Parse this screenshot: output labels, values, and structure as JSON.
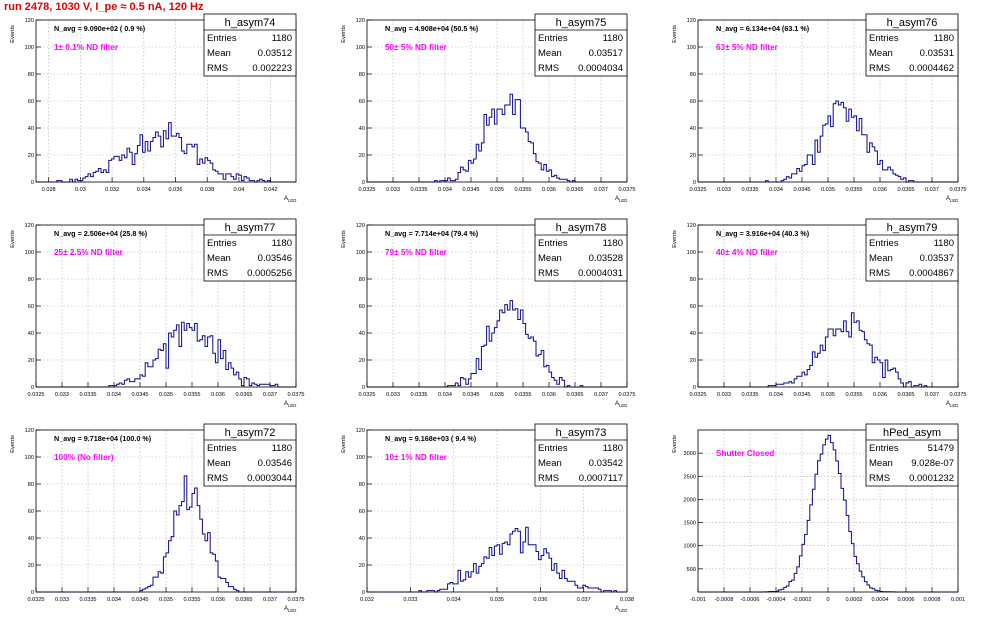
{
  "header": {
    "title": "run 2478,  1030 V, I_pe ≈ 0.5 nA, 120 Hz"
  },
  "colors": {
    "hist_line": "#0b0b8a",
    "annotation": "#ff00ff",
    "title": "#e00000",
    "grid": "#b0b0b0"
  },
  "stats_labels": {
    "entries": "Entries",
    "mean": "Mean",
    "rms": "RMS"
  },
  "chart_data": [
    {
      "name": "h_asym74",
      "type": "histogram",
      "ylabel": "Events",
      "xlabel": "A_LED",
      "xlim": [
        0.0272,
        0.0436
      ],
      "ylim": [
        0,
        120
      ],
      "grid": true,
      "xticks": [
        "0.028",
        "0.03",
        "0.032",
        "0.034",
        "0.036",
        "0.038",
        "0.04",
        "0.042"
      ],
      "xtick_values": [
        0.028,
        0.03,
        0.032,
        0.034,
        0.036,
        0.038,
        0.04,
        0.042
      ],
      "yticks": [
        "0",
        "20",
        "40",
        "60",
        "80",
        "100",
        "120"
      ],
      "navg": "N_avg = 9.090e+02 ( 0.9 %)",
      "annotation": "1± 0.1% ND filter",
      "stats": {
        "entries": "1180",
        "mean": "0.03512",
        "rms": "0.002223"
      },
      "dist": {
        "mean": 0.03512,
        "sigma": 0.002223,
        "count": 1180,
        "nbins": 100
      }
    },
    {
      "name": "h_asym75",
      "type": "histogram",
      "ylabel": "Events",
      "xlabel": "A_LED",
      "xlim": [
        0.0325,
        0.0375
      ],
      "ylim": [
        0,
        120
      ],
      "grid": true,
      "xticks": [
        "0.0325",
        "0.033",
        "0.0335",
        "0.034",
        "0.0345",
        "0.035",
        "0.0355",
        "0.036",
        "0.0365",
        "0.037",
        "0.0375"
      ],
      "xtick_values": [
        0.0325,
        0.033,
        0.0335,
        0.034,
        0.0345,
        0.035,
        0.0355,
        0.036,
        0.0365,
        0.037,
        0.0375
      ],
      "yticks": [
        "0",
        "20",
        "40",
        "60",
        "80",
        "100",
        "120"
      ],
      "navg": "N_avg = 4.908e+04 (50.5 %)",
      "annotation": "50± 5% ND filter",
      "stats": {
        "entries": "1180",
        "mean": "0.03517",
        "rms": "0.0004034"
      },
      "dist": {
        "mean": 0.03517,
        "sigma": 0.0004034,
        "count": 1180,
        "nbins": 100
      }
    },
    {
      "name": "h_asym76",
      "type": "histogram",
      "ylabel": "Events",
      "xlabel": "A_LED",
      "xlim": [
        0.0325,
        0.0375
      ],
      "ylim": [
        0,
        120
      ],
      "grid": true,
      "xticks": [
        "0.0325",
        "0.033",
        "0.0335",
        "0.034",
        "0.0345",
        "0.035",
        "0.0355",
        "0.036",
        "0.0365",
        "0.037",
        "0.0375"
      ],
      "xtick_values": [
        0.0325,
        0.033,
        0.0335,
        0.034,
        0.0345,
        0.035,
        0.0355,
        0.036,
        0.0365,
        0.037,
        0.0375
      ],
      "yticks": [
        "0",
        "20",
        "40",
        "60",
        "80",
        "100",
        "120"
      ],
      "navg": "N_avg = 6.134e+04 (63.1 %)",
      "annotation": "63± 5% ND filter",
      "stats": {
        "entries": "1180",
        "mean": "0.03531",
        "rms": "0.0004462"
      },
      "dist": {
        "mean": 0.03531,
        "sigma": 0.0004462,
        "count": 1180,
        "nbins": 100
      }
    },
    {
      "name": "h_asym77",
      "type": "histogram",
      "ylabel": "Events",
      "xlabel": "A_LED",
      "xlim": [
        0.0325,
        0.0375
      ],
      "ylim": [
        0,
        120
      ],
      "grid": true,
      "xticks": [
        "0.0325",
        "0.033",
        "0.0335",
        "0.034",
        "0.0345",
        "0.035",
        "0.0355",
        "0.036",
        "0.0365",
        "0.037",
        "0.0375"
      ],
      "xtick_values": [
        0.0325,
        0.033,
        0.0335,
        0.034,
        0.0345,
        0.035,
        0.0355,
        0.036,
        0.0365,
        0.037,
        0.0375
      ],
      "yticks": [
        "0",
        "20",
        "40",
        "60",
        "80",
        "100",
        "120"
      ],
      "navg": "N_avg = 2.506e+04 (25.8 %)",
      "annotation": "25± 2.5% ND filter",
      "stats": {
        "entries": "1180",
        "mean": "0.03546",
        "rms": "0.0005256"
      },
      "dist": {
        "mean": 0.03546,
        "sigma": 0.0005256,
        "count": 1180,
        "nbins": 100
      }
    },
    {
      "name": "h_asym78",
      "type": "histogram",
      "ylabel": "Events",
      "xlabel": "A_LED",
      "xlim": [
        0.0325,
        0.0375
      ],
      "ylim": [
        0,
        120
      ],
      "grid": true,
      "xticks": [
        "0.0325",
        "0.033",
        "0.0335",
        "0.034",
        "0.0345",
        "0.035",
        "0.0355",
        "0.036",
        "0.0365",
        "0.037",
        "0.0375"
      ],
      "xtick_values": [
        0.0325,
        0.033,
        0.0335,
        0.034,
        0.0345,
        0.035,
        0.0355,
        0.036,
        0.0365,
        0.037,
        0.0375
      ],
      "yticks": [
        "0",
        "20",
        "40",
        "60",
        "80",
        "100",
        "120"
      ],
      "navg": "N_avg = 7.714e+04 (79.4 %)",
      "annotation": "79± 5% ND filter",
      "stats": {
        "entries": "1180",
        "mean": "0.03528",
        "rms": "0.0004031"
      },
      "dist": {
        "mean": 0.03528,
        "sigma": 0.0004031,
        "count": 1180,
        "nbins": 100
      }
    },
    {
      "name": "h_asym79",
      "type": "histogram",
      "ylabel": "Events",
      "xlabel": "A_LED",
      "xlim": [
        0.0325,
        0.0375
      ],
      "ylim": [
        0,
        120
      ],
      "grid": true,
      "xticks": [
        "0.0325",
        "0.033",
        "0.0335",
        "0.034",
        "0.0345",
        "0.035",
        "0.0355",
        "0.036",
        "0.0365",
        "0.037",
        "0.0375"
      ],
      "xtick_values": [
        0.0325,
        0.033,
        0.0335,
        0.034,
        0.0345,
        0.035,
        0.0355,
        0.036,
        0.0365,
        0.037,
        0.0375
      ],
      "yticks": [
        "0",
        "20",
        "40",
        "60",
        "80",
        "100",
        "120"
      ],
      "navg": "N_avg = 3.916e+04 (40.3 %)",
      "annotation": "40± 4% ND filter",
      "stats": {
        "entries": "1180",
        "mean": "0.03537",
        "rms": "0.0004867"
      },
      "dist": {
        "mean": 0.03537,
        "sigma": 0.0004867,
        "count": 1180,
        "nbins": 100
      }
    },
    {
      "name": "h_asym72",
      "type": "histogram",
      "ylabel": "Events",
      "xlabel": "A_LED",
      "xlim": [
        0.0325,
        0.0375
      ],
      "ylim": [
        0,
        120
      ],
      "grid": true,
      "xticks": [
        "0.0325",
        "0.033",
        "0.0335",
        "0.034",
        "0.0345",
        "0.035",
        "0.0355",
        "0.036",
        "0.0365",
        "0.037",
        "0.0375"
      ],
      "xtick_values": [
        0.0325,
        0.033,
        0.0335,
        0.034,
        0.0345,
        0.035,
        0.0355,
        0.036,
        0.0365,
        0.037,
        0.0375
      ],
      "yticks": [
        "0",
        "20",
        "40",
        "60",
        "80",
        "100",
        "120"
      ],
      "navg": "N_avg = 9.718e+04 (100.0 %)",
      "annotation": "100% (No filter)",
      "stats": {
        "entries": "1180",
        "mean": "0.03546",
        "rms": "0.0003044"
      },
      "dist": {
        "mean": 0.03546,
        "sigma": 0.0003044,
        "count": 1180,
        "nbins": 100
      }
    },
    {
      "name": "h_asym73",
      "type": "histogram",
      "ylabel": "Events",
      "xlabel": "A_LED",
      "xlim": [
        0.032,
        0.038
      ],
      "ylim": [
        0,
        120
      ],
      "grid": true,
      "xticks": [
        "0.032",
        "0.033",
        "0.034",
        "0.035",
        "0.036",
        "0.037",
        "0.038"
      ],
      "xtick_values": [
        0.032,
        0.033,
        0.034,
        0.035,
        0.036,
        0.037,
        0.038
      ],
      "yticks": [
        "0",
        "20",
        "40",
        "60",
        "80",
        "100",
        "120"
      ],
      "navg": "N_avg = 9.168e+03 ( 9.4 %)",
      "annotation": "10± 1% ND filter",
      "stats": {
        "entries": "1180",
        "mean": "0.03542",
        "rms": "0.0007117"
      },
      "dist": {
        "mean": 0.03542,
        "sigma": 0.0007117,
        "count": 1180,
        "nbins": 100
      }
    },
    {
      "name": "hPed_asym",
      "type": "histogram",
      "ylabel": "Events",
      "xlabel": "",
      "xlim": [
        -0.001,
        0.001
      ],
      "ylim": [
        0,
        3500
      ],
      "grid": true,
      "xticks": [
        "-0.001",
        "-0.0008",
        "-0.0006",
        "-0.0004",
        "-0.0002",
        "0",
        "0.0002",
        "0.0004",
        "0.0006",
        "0.0008",
        "0.001"
      ],
      "xtick_values": [
        -0.001,
        -0.0008,
        -0.0006,
        -0.0004,
        -0.0002,
        0,
        0.0002,
        0.0004,
        0.0006,
        0.0008,
        0.001
      ],
      "yticks": [
        "500",
        "1000",
        "1500",
        "2000",
        "2500",
        "3000"
      ],
      "navg": "",
      "annotation": "Shutter Closed",
      "stats": {
        "entries": "51479",
        "mean": "9.028e-07",
        "rms": "0.0001232"
      },
      "dist": {
        "mean": 9.028e-07,
        "sigma": 0.0001232,
        "count": 51479,
        "nbins": 100
      }
    }
  ]
}
